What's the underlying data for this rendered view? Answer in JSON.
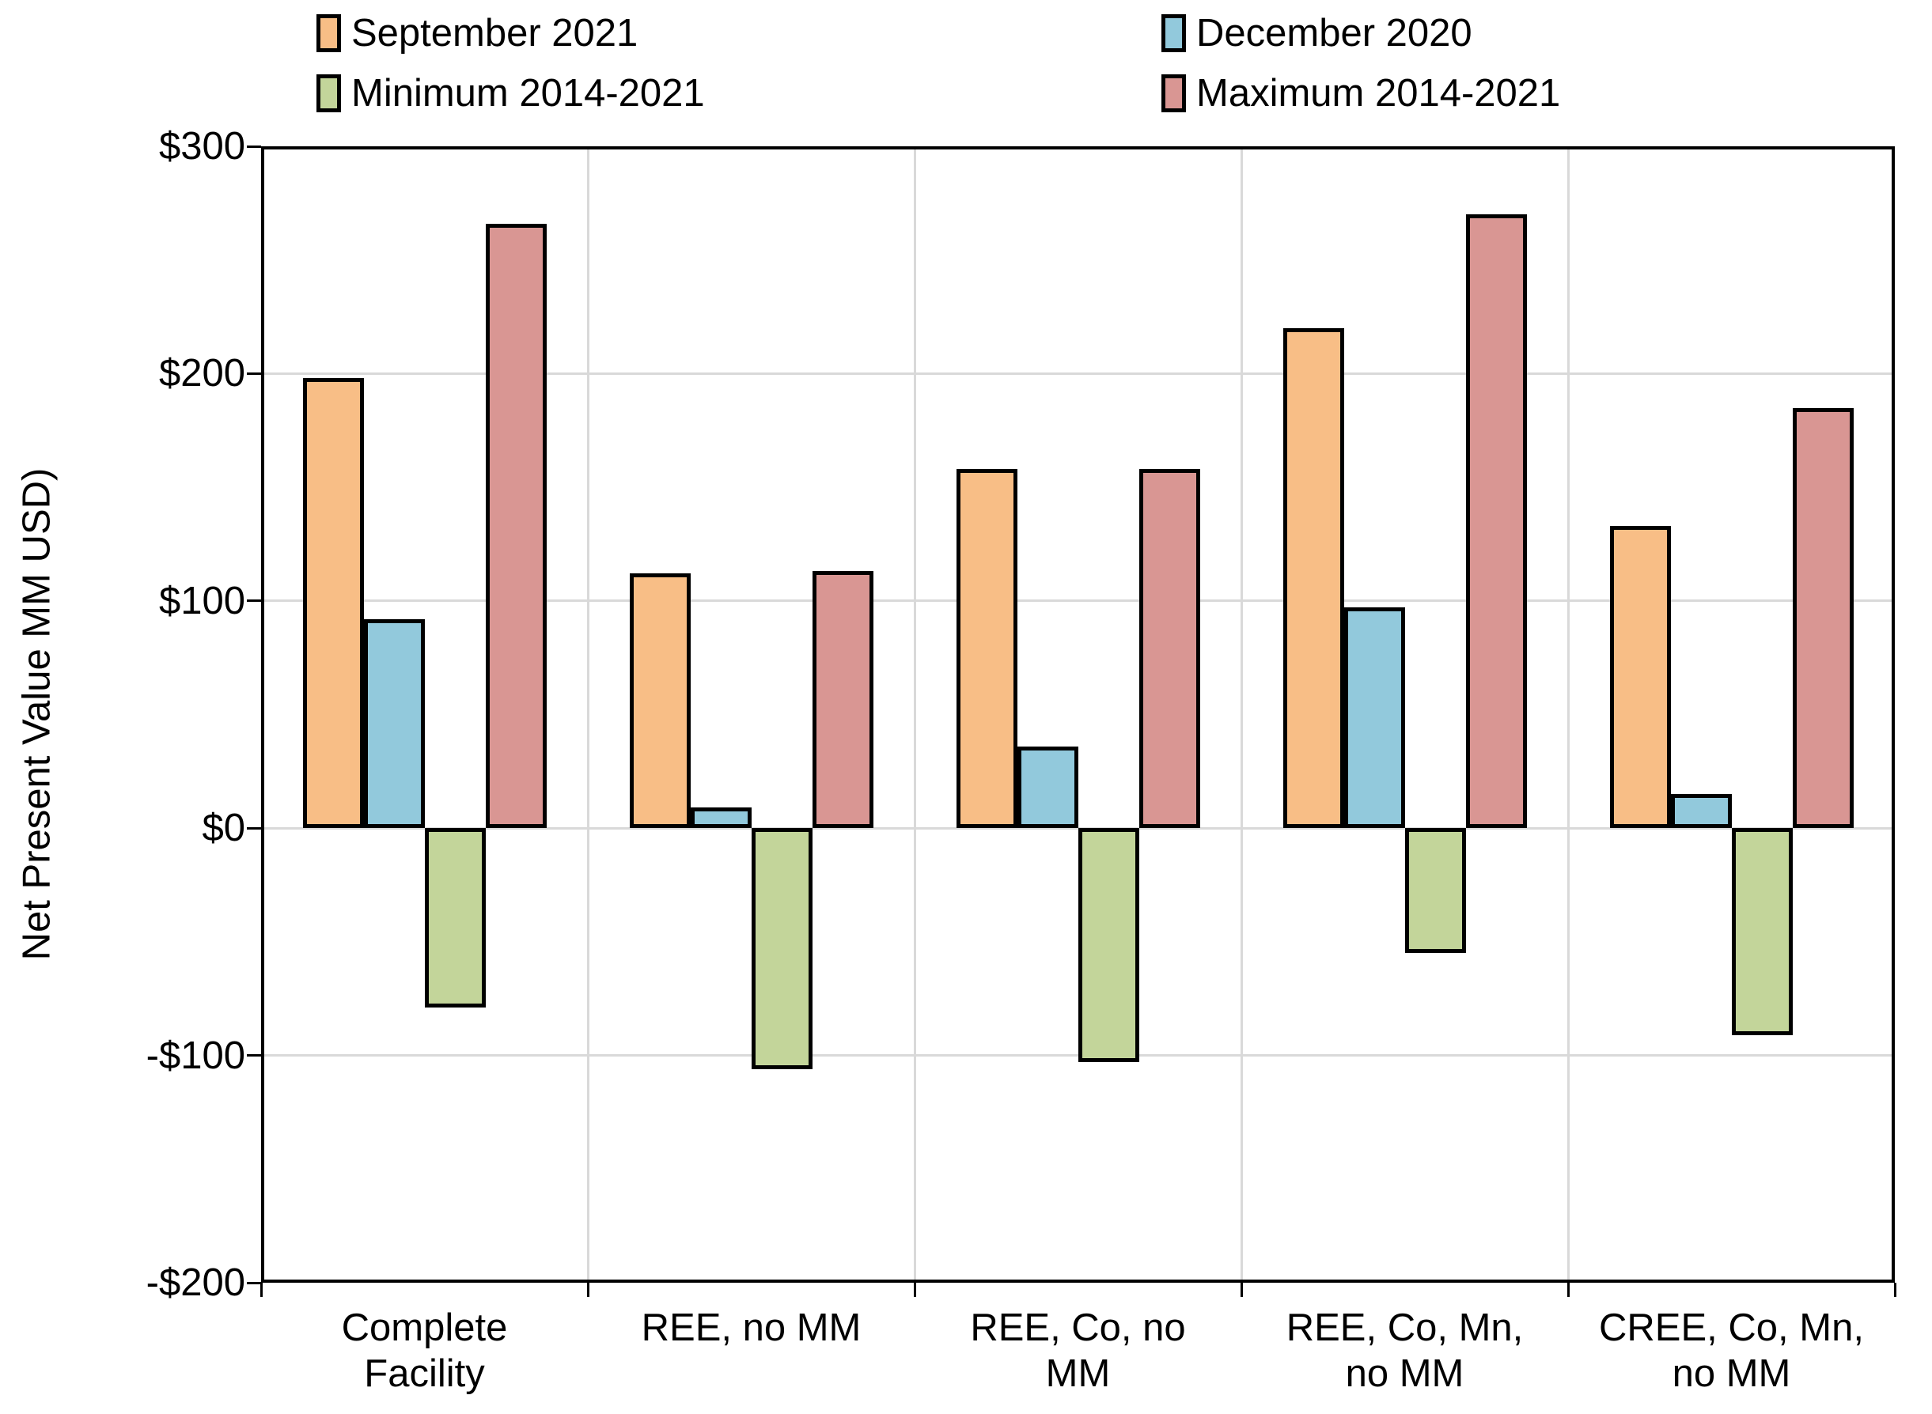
{
  "chart_data": {
    "type": "bar",
    "title": "",
    "xlabel": "",
    "ylabel": "Net Present Value MM USD)",
    "ylim": [
      -200,
      300
    ],
    "grid": true,
    "legend_position": "top-two-column",
    "categories": [
      "Complete Facility",
      "REE, no MM",
      "REE, Co, no MM",
      "REE, Co, Mn, no MM",
      "CREE, Co, Mn, no MM"
    ],
    "series": [
      {
        "name": "September 2021",
        "color": "#F8BE86",
        "values": [
          198,
          112,
          158,
          220,
          133
        ]
      },
      {
        "name": "December 2020",
        "color": "#92C9DC",
        "values": [
          92,
          9,
          36,
          97,
          15
        ]
      },
      {
        "name": "Minimum 2014-2021",
        "color": "#C3D59A",
        "values": [
          -79,
          -106,
          -103,
          -55,
          -91
        ]
      },
      {
        "name": "Maximum 2014-2021",
        "color": "#D99693",
        "values": [
          266,
          113,
          158,
          270,
          185
        ]
      }
    ],
    "y_axis": {
      "tick_labels": [
        "$300",
        "$200",
        "$100",
        "$0",
        "-$100",
        "-$200"
      ],
      "tick_values": [
        300,
        200,
        100,
        0,
        -100,
        -200
      ]
    },
    "x_axis": {
      "tick_lines": [
        [
          "Complete",
          "Facility"
        ],
        [
          "REE, no MM"
        ],
        [
          "REE, Co, no",
          "MM"
        ],
        [
          "REE, Co, Mn,",
          "no MM"
        ],
        [
          "CREE, Co, Mn,",
          "no MM"
        ]
      ]
    },
    "colors": {
      "background": "#FFFFFF",
      "gridline": "#D9D9D9",
      "axis": "#000000",
      "bar_border": "#000000"
    }
  }
}
